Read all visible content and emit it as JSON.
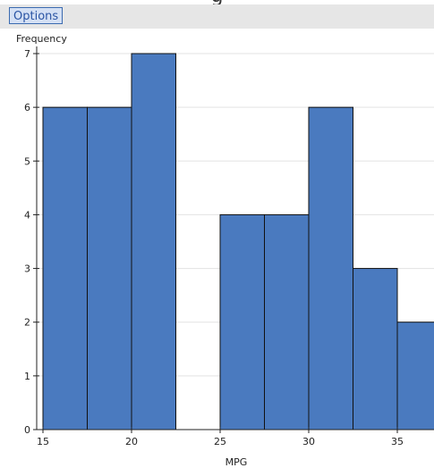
{
  "title_fragment": "g",
  "toolbar": {
    "options_label": "Options"
  },
  "colors": {
    "bar_fill": "#4a7abf",
    "bar_stroke": "#111111",
    "grid": "#e3e3e3",
    "toolbar_bg": "#e6e6e6"
  },
  "chart_data": {
    "type": "bar",
    "xlabel": "MPG",
    "ylabel": "Frequency",
    "bin_width": 2.5,
    "bins": [
      {
        "start": 15,
        "end": 17.5,
        "count": 6
      },
      {
        "start": 17.5,
        "end": 20,
        "count": 6
      },
      {
        "start": 20,
        "end": 22.5,
        "count": 7
      },
      {
        "start": 22.5,
        "end": 25,
        "count": 0
      },
      {
        "start": 25,
        "end": 27.5,
        "count": 4
      },
      {
        "start": 27.5,
        "end": 30,
        "count": 4
      },
      {
        "start": 30,
        "end": 32.5,
        "count": 6
      },
      {
        "start": 32.5,
        "end": 35,
        "count": 3
      },
      {
        "start": 35,
        "end": 37.5,
        "count": 2
      }
    ],
    "xticks": [
      15,
      20,
      25,
      30,
      35
    ],
    "yticks": [
      0,
      1,
      2,
      3,
      4,
      5,
      6,
      7
    ],
    "grid": true
  }
}
